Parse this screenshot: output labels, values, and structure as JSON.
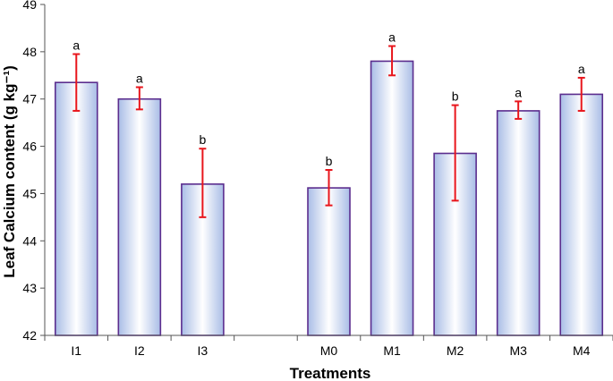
{
  "chart_data": {
    "type": "bar",
    "title": "",
    "xlabel": "Treatments",
    "ylabel": "Leaf Calcium content (g kg⁻¹)",
    "ylim": [
      42,
      49
    ],
    "yticks": [
      42,
      43,
      44,
      45,
      46,
      47,
      48,
      49
    ],
    "grid": false,
    "slots": [
      "I1",
      "I2",
      "I3",
      "",
      "M0",
      "M1",
      "M2",
      "M3",
      "M4"
    ],
    "categories": [
      "I1",
      "I2",
      "I3",
      "M0",
      "M1",
      "M2",
      "M3",
      "M4"
    ],
    "values": [
      47.35,
      47.0,
      45.2,
      45.12,
      47.8,
      45.85,
      46.75,
      47.1
    ],
    "error_low": [
      46.75,
      46.78,
      44.5,
      44.75,
      47.5,
      44.85,
      46.58,
      46.75
    ],
    "error_high": [
      47.95,
      47.25,
      45.95,
      45.5,
      48.12,
      46.87,
      46.95,
      47.45
    ],
    "significance": [
      "a",
      "a",
      "b",
      "b",
      "a",
      "b",
      "a",
      "a"
    ],
    "colors": {
      "bar_outline": "#5b2d8e",
      "bar_center": "#ffffff",
      "bar_edge": "#a9bde6",
      "error_bar": "#e8161c",
      "axis": "#555555"
    }
  }
}
